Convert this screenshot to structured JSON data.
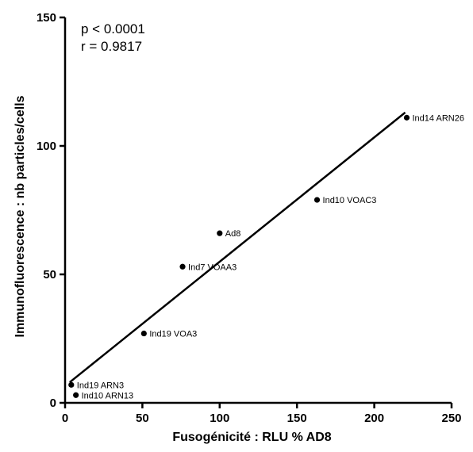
{
  "chart_data": {
    "type": "scatter",
    "title": "",
    "xlabel": "Fusogénicité : RLU % AD8",
    "ylabel": "Immunofluorescence : nb particles/cells",
    "xlim": [
      0,
      250
    ],
    "ylim": [
      0,
      150
    ],
    "x_ticks": [
      0,
      50,
      100,
      150,
      200,
      250
    ],
    "y_ticks": [
      0,
      50,
      100,
      150
    ],
    "grid": false,
    "series": [
      {
        "points": [
          {
            "label": "Ind19 ARN3",
            "x": 4,
            "y": 7
          },
          {
            "label": "Ind10 ARN13",
            "x": 7,
            "y": 3
          },
          {
            "label": "Ind19 VOA3",
            "x": 51,
            "y": 27
          },
          {
            "label": "Ind7 VOAA3",
            "x": 76,
            "y": 53
          },
          {
            "label": "Ad8",
            "x": 100,
            "y": 66
          },
          {
            "label": "Ind10 VOAC3",
            "x": 163,
            "y": 79
          },
          {
            "label": "Ind14 ARN26",
            "x": 221,
            "y": 111
          }
        ]
      }
    ],
    "regression_line": {
      "x": [
        3,
        220
      ],
      "y": [
        8,
        113
      ]
    },
    "annotations": [
      "p  < 0.0001",
      "r = 0.9817"
    ],
    "colors": {
      "points": "#000000",
      "line": "#000000",
      "axes": "#000000"
    }
  }
}
